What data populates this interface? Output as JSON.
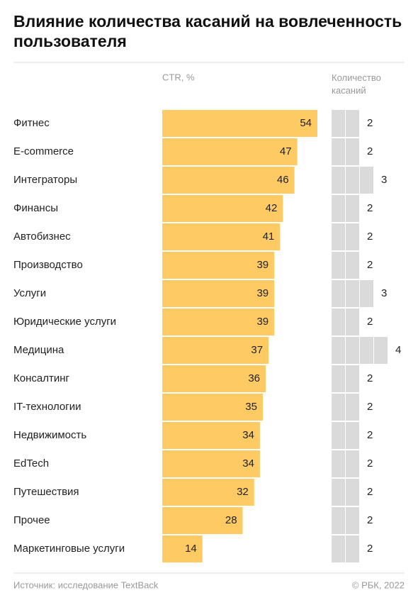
{
  "chart_data": {
    "type": "bar",
    "title": "Влияние количества касаний на вовлеченность пользователя",
    "categories": [
      "Фитнес",
      "E-commerce",
      "Интеграторы",
      "Финансы",
      "Автобизнес",
      "Производство",
      "Услуги",
      "Юридические услуги",
      "Медицина",
      "Консалтинг",
      "IT-технологии",
      "Недвижимость",
      "EdTech",
      "Путешествия",
      "Прочее",
      "Маркетинговые услуги"
    ],
    "series": [
      {
        "name": "CTR, %",
        "color": "#fdca64",
        "values": [
          54,
          47,
          46,
          42,
          41,
          39,
          39,
          39,
          37,
          36,
          35,
          34,
          34,
          32,
          28,
          14
        ]
      },
      {
        "name": "Количество касаний",
        "color": "#dadada",
        "values": [
          2,
          2,
          3,
          2,
          2,
          2,
          3,
          2,
          4,
          2,
          2,
          2,
          2,
          2,
          2,
          2
        ]
      }
    ],
    "source": "Источник: исследование TextBack",
    "copyright": "© РБК, 2022"
  }
}
